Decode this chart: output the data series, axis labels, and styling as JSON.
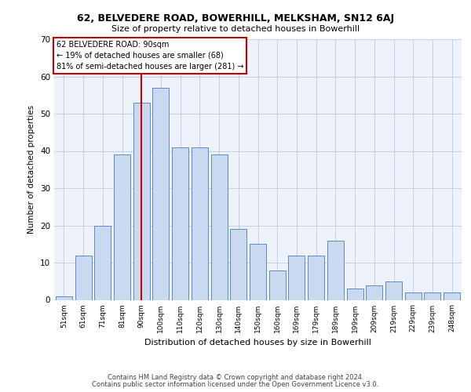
{
  "title": "62, BELVEDERE ROAD, BOWERHILL, MELKSHAM, SN12 6AJ",
  "subtitle": "Size of property relative to detached houses in Bowerhill",
  "xlabel": "Distribution of detached houses by size in Bowerhill",
  "ylabel": "Number of detached properties",
  "categories": [
    "51sqm",
    "61sqm",
    "71sqm",
    "81sqm",
    "90sqm",
    "100sqm",
    "110sqm",
    "120sqm",
    "130sqm",
    "140sqm",
    "150sqm",
    "160sqm",
    "169sqm",
    "179sqm",
    "189sqm",
    "199sqm",
    "209sqm",
    "219sqm",
    "229sqm",
    "239sqm",
    "248sqm"
  ],
  "values": [
    1,
    12,
    20,
    39,
    53,
    57,
    41,
    41,
    39,
    19,
    15,
    8,
    12,
    12,
    16,
    3,
    4,
    5,
    2,
    2,
    2
  ],
  "bar_color": "#c9d9f0",
  "bar_edge_color": "#5a8ac6",
  "vline_x": 4,
  "vline_color": "#cc0000",
  "annotation_text": "62 BELVEDERE ROAD: 90sqm\n← 19% of detached houses are smaller (68)\n81% of semi-detached houses are larger (281) →",
  "annotation_box_color": "#cc0000",
  "ylim": [
    0,
    70
  ],
  "yticks": [
    0,
    10,
    20,
    30,
    40,
    50,
    60,
    70
  ],
  "grid_color": "#c8d0e8",
  "bg_color": "#eef2fa",
  "footer1": "Contains HM Land Registry data © Crown copyright and database right 2024.",
  "footer2": "Contains public sector information licensed under the Open Government Licence v3.0."
}
